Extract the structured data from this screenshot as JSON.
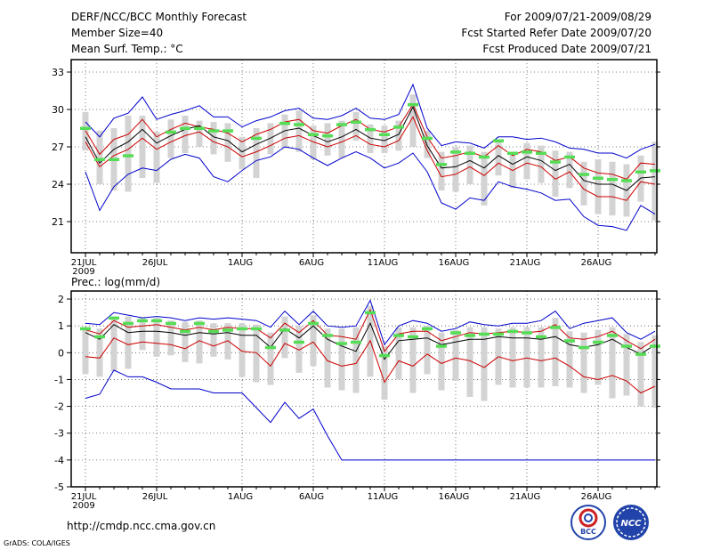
{
  "header": {
    "title": "DERF/NCC/BCC Monthly Forecast",
    "member_size": "Member Size=40",
    "variable": "Mean Surf. Temp.: °C",
    "period": "For 2009/07/21-2009/08/29",
    "started": "Fcst Started Refer Date 2009/07/20",
    "produced": "Fcst Produced Date 2009/07/21"
  },
  "footer": {
    "url": "http://cmdp.ncc.cma.gov.cn",
    "grads": "GrADS: COLA/IGES",
    "logo_left": "BCC",
    "logo_right": "NCC"
  },
  "colors": {
    "envelope": "#0000cc",
    "ens_mean": "#000000",
    "red_line": "#cc0000",
    "bar": "#d3d3d3",
    "dash": "#55dd55"
  },
  "chart_data": [
    {
      "type": "line",
      "title": "Mean Surf. Temp.: °C",
      "ylim": [
        18.5,
        34
      ],
      "yticks": [
        "21",
        "24",
        "27",
        "30",
        "33"
      ],
      "ytick_values": [
        21,
        24,
        27,
        30,
        33
      ],
      "xtick_labels": [
        "21JUL",
        "26JUL",
        "1AUG",
        "6AUG",
        "11AUG",
        "16AUG",
        "21AUG",
        "26AUG"
      ],
      "xtick_index": [
        0,
        5,
        11,
        16,
        21,
        26,
        31,
        36
      ],
      "year_label": "2009",
      "series": [
        {
          "name": "max",
          "values": [
            29.0,
            27.8,
            29.3,
            29.7,
            31.0,
            29.2,
            29.6,
            29.9,
            30.3,
            29.4,
            29.4,
            28.6,
            29.1,
            29.4,
            29.9,
            30.1,
            29.3,
            29.2,
            29.5,
            30.1,
            29.3,
            29.2,
            29.6,
            32.0,
            28.5,
            27.1,
            27.4,
            27.3,
            26.9,
            27.8,
            27.8,
            27.6,
            27.7,
            27.4,
            26.9,
            26.8,
            26.5,
            26.5,
            26.1,
            26.8,
            27.2
          ]
        },
        {
          "name": "upper",
          "values": [
            28.3,
            26.4,
            27.6,
            28.0,
            29.2,
            27.8,
            28.4,
            28.9,
            28.6,
            28.4,
            28.1,
            27.4,
            28.0,
            28.4,
            29.0,
            29.2,
            28.3,
            28.1,
            28.7,
            29.2,
            28.4,
            28.2,
            28.6,
            30.4,
            27.8,
            26.1,
            26.3,
            26.6,
            26.2,
            27.1,
            26.3,
            26.8,
            26.6,
            25.9,
            26.2,
            25.3,
            24.9,
            24.8,
            24.4,
            25.7,
            25.6
          ]
        },
        {
          "name": "mean",
          "values": [
            27.8,
            25.7,
            26.8,
            27.4,
            28.4,
            27.3,
            27.9,
            28.4,
            28.7,
            27.8,
            27.5,
            26.6,
            27.2,
            27.7,
            28.3,
            28.5,
            27.9,
            27.4,
            27.8,
            28.4,
            27.7,
            27.5,
            28.0,
            30.2,
            27.1,
            25.3,
            25.4,
            25.9,
            25.3,
            26.3,
            25.6,
            26.2,
            25.9,
            25.1,
            25.6,
            24.3,
            24.0,
            24.0,
            23.5,
            24.5,
            24.6
          ]
        },
        {
          "name": "lower",
          "values": [
            27.4,
            25.4,
            26.3,
            26.8,
            27.7,
            26.8,
            27.4,
            27.9,
            28.2,
            27.4,
            27.0,
            26.2,
            26.6,
            27.1,
            27.7,
            27.9,
            27.4,
            27.0,
            27.4,
            27.9,
            27.2,
            27.0,
            27.5,
            29.4,
            26.7,
            24.6,
            24.8,
            25.4,
            24.7,
            25.7,
            25.1,
            25.7,
            25.4,
            24.4,
            25.0,
            23.6,
            23.0,
            23.0,
            22.7,
            24.2,
            24.0
          ]
        },
        {
          "name": "min",
          "values": [
            25.0,
            21.9,
            23.8,
            24.8,
            25.3,
            25.1,
            26.0,
            26.4,
            26.1,
            24.6,
            24.2,
            25.1,
            25.9,
            26.2,
            27.0,
            26.8,
            26.1,
            25.5,
            26.1,
            26.6,
            26.1,
            25.3,
            25.7,
            26.5,
            25.0,
            22.5,
            22.0,
            22.9,
            22.7,
            24.2,
            23.8,
            23.6,
            23.3,
            22.7,
            22.8,
            21.4,
            20.7,
            20.6,
            20.3,
            22.3,
            21.6
          ]
        }
      ],
      "obs_dashes": [
        28.5,
        26.0,
        26.0,
        26.3,
        null,
        null,
        28.2,
        28.5,
        28.5,
        28.3,
        28.3,
        null,
        27.7,
        null,
        28.9,
        28.8,
        28.0,
        27.9,
        28.8,
        29.0,
        28.4,
        28.0,
        28.6,
        30.4,
        27.7,
        25.6,
        26.6,
        26.5,
        26.2,
        27.5,
        26.5,
        26.6,
        26.5,
        25.8,
        26.2,
        24.8,
        24.5,
        24.4,
        24.3,
        25.0,
        25.1
      ],
      "box_top": [
        29.8,
        28.3,
        28.5,
        29.5,
        29.5,
        28.2,
        29.2,
        29.5,
        29.1,
        29.0,
        28.9,
        27.8,
        28.5,
        28.9,
        29.6,
        29.9,
        28.7,
        28.9,
        29.1,
        29.8,
        28.8,
        28.7,
        29.1,
        31.2,
        28.3,
        26.6,
        27.0,
        27.1,
        26.6,
        27.4,
        26.6,
        27.3,
        27.1,
        26.7,
        26.6,
        25.8,
        26.0,
        25.8,
        25.6,
        26.3,
        27.4
      ],
      "box_bottom": [
        26.7,
        24.0,
        23.5,
        23.4,
        24.5,
        24.1,
        26.1,
        26.5,
        27.0,
        26.4,
        25.8,
        25.2,
        24.5,
        26.4,
        26.9,
        26.6,
        26.0,
        26.3,
        26.1,
        27.5,
        26.5,
        26.5,
        26.7,
        27.0,
        26.1,
        23.5,
        23.4,
        24.0,
        22.3,
        24.7,
        23.7,
        24.4,
        24.1,
        23.0,
        23.7,
        22.3,
        21.6,
        21.5,
        21.4,
        22.6,
        21.1
      ]
    },
    {
      "type": "line",
      "title": "Prec.: log(mm/d)",
      "ylim": [
        -5,
        2.3
      ],
      "yticks": [
        "-5",
        "-4",
        "-3",
        "-2",
        "-1",
        "0",
        "1",
        "2"
      ],
      "ytick_values": [
        -5,
        -4,
        -3,
        -2,
        -1,
        0,
        1,
        2
      ],
      "xtick_labels": [
        "21JUL",
        "26JUL",
        "1AUG",
        "6AUG",
        "11AUG",
        "16AUG",
        "21AUG",
        "26AUG"
      ],
      "xtick_index": [
        0,
        5,
        11,
        16,
        21,
        26,
        31,
        36
      ],
      "year_label": "2009",
      "series": [
        {
          "name": "max",
          "values": [
            1.1,
            1.05,
            1.5,
            1.4,
            1.3,
            1.35,
            1.3,
            1.2,
            1.3,
            1.25,
            1.3,
            1.25,
            1.2,
            0.95,
            1.55,
            1.05,
            1.55,
            1.0,
            0.95,
            1.0,
            1.95,
            0.3,
            1.0,
            1.2,
            1.1,
            0.8,
            0.9,
            1.15,
            1.05,
            1.0,
            1.1,
            1.1,
            1.2,
            1.55,
            0.9,
            1.1,
            1.2,
            1.3,
            0.75,
            0.5,
            0.8
          ]
        },
        {
          "name": "upper",
          "values": [
            0.85,
            0.7,
            1.2,
            0.95,
            1.0,
            1.05,
            0.95,
            0.85,
            0.95,
            0.85,
            0.95,
            0.9,
            0.9,
            0.55,
            1.1,
            0.75,
            1.2,
            0.65,
            0.6,
            0.5,
            1.6,
            0.05,
            0.7,
            0.8,
            0.8,
            0.45,
            0.6,
            0.75,
            0.7,
            0.75,
            0.8,
            0.75,
            0.8,
            1.05,
            0.55,
            0.5,
            0.6,
            0.8,
            0.45,
            0.15,
            0.5
          ]
        },
        {
          "name": "mean",
          "values": [
            0.75,
            0.5,
            1.05,
            0.75,
            0.8,
            0.8,
            0.75,
            0.65,
            0.75,
            0.7,
            0.75,
            0.65,
            0.65,
            0.2,
            0.9,
            0.55,
            1.0,
            0.5,
            0.25,
            0.05,
            1.1,
            -0.25,
            0.45,
            0.5,
            0.55,
            0.3,
            0.4,
            0.5,
            0.5,
            0.6,
            0.55,
            0.55,
            0.5,
            0.6,
            0.3,
            0.2,
            0.3,
            0.5,
            0.2,
            -0.05,
            0.3
          ]
        },
        {
          "name": "lower",
          "values": [
            -0.15,
            -0.2,
            0.55,
            0.3,
            0.4,
            0.35,
            0.3,
            0.15,
            0.45,
            0.25,
            0.45,
            0.05,
            0.0,
            -0.5,
            0.35,
            0.1,
            0.4,
            -0.3,
            -0.5,
            -0.4,
            0.45,
            -1.1,
            -0.3,
            -0.5,
            -0.05,
            -0.4,
            -0.2,
            -0.3,
            -0.55,
            -0.15,
            -0.3,
            -0.2,
            -0.3,
            -0.2,
            -0.5,
            -0.9,
            -1.0,
            -0.85,
            -1.05,
            -1.5,
            -1.25
          ]
        },
        {
          "name": "min",
          "values": [
            -1.7,
            -1.55,
            -0.65,
            -0.9,
            -0.9,
            -1.1,
            -1.35,
            -1.35,
            -1.35,
            -1.5,
            -1.5,
            -1.5,
            -2.05,
            -2.6,
            -1.85,
            -2.45,
            -2.1,
            -3.1,
            -4.0,
            -4.0,
            -4.0,
            -4.0,
            -4.0,
            -4.0,
            -4.0,
            -4.0,
            -4.0,
            -4.0,
            -4.0,
            -4.0,
            -4.0,
            -4.0,
            -4.0,
            -4.0,
            -4.0,
            -4.0,
            -4.0,
            -4.0,
            -4.0,
            -4.0,
            -4.0
          ]
        }
      ],
      "obs_dashes": [
        0.9,
        0.6,
        1.3,
        1.1,
        1.2,
        1.2,
        1.1,
        0.8,
        1.1,
        0.8,
        0.85,
        0.9,
        0.9,
        0.2,
        0.85,
        0.4,
        1.1,
        0.65,
        0.35,
        0.4,
        1.5,
        -0.1,
        0.65,
        0.6,
        0.9,
        0.25,
        0.75,
        0.65,
        0.7,
        0.7,
        0.8,
        0.75,
        0.6,
        0.95,
        0.45,
        0.2,
        0.4,
        0.65,
        0.25,
        -0.05,
        0.25
      ],
      "box_top": [
        0.95,
        0.9,
        1.35,
        1.35,
        1.3,
        1.3,
        1.2,
        1.15,
        1.2,
        1.1,
        1.1,
        1.1,
        1.05,
        0.75,
        1.35,
        1.0,
        1.4,
        0.9,
        0.9,
        0.95,
        1.75,
        0.25,
        0.95,
        0.95,
        1.0,
        0.75,
        0.85,
        0.95,
        0.95,
        0.9,
        0.95,
        0.95,
        0.95,
        1.3,
        0.8,
        0.75,
        0.85,
        0.95,
        0.7,
        0.4,
        0.65
      ],
      "box_bottom": [
        -0.8,
        -0.9,
        -0.7,
        -0.6,
        0.1,
        -0.15,
        -0.1,
        -0.35,
        -0.4,
        -0.15,
        -0.25,
        -0.9,
        -1.1,
        -1.2,
        -0.2,
        -0.75,
        -0.5,
        -1.3,
        -1.4,
        -1.5,
        -0.9,
        -1.75,
        -1.0,
        -1.5,
        -0.8,
        -1.4,
        -1.05,
        -1.65,
        -1.8,
        -1.2,
        -1.3,
        -1.3,
        -1.3,
        -1.25,
        -1.3,
        -1.5,
        -1.2,
        -1.7,
        -1.6,
        -2.0,
        -2.05
      ]
    }
  ]
}
